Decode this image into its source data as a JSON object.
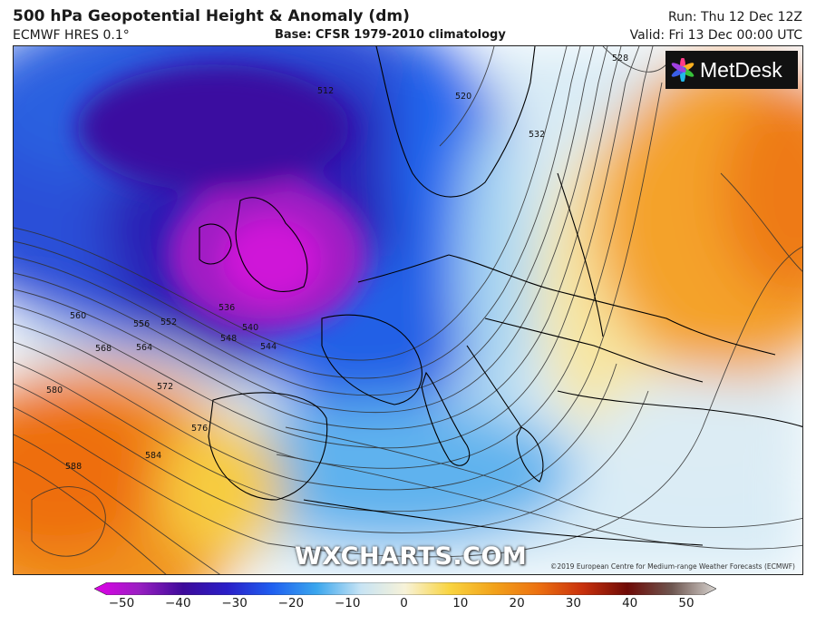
{
  "header": {
    "title": "500 hPa Geopotential Height & Anomaly (dm)",
    "model": "ECMWF HRES 0.1°",
    "base": "Base: CFSR 1979-2010 climatology",
    "run": "Run: Thu 12 Dec 12Z",
    "valid": "Valid: Fri 13 Dec 00:00 UTC"
  },
  "brand": {
    "logo_text": "MetDesk",
    "watermark": "WXCHARTS.COM",
    "copyright": "©2019 European Centre for Medium-range Weather Forecasts (ECMWF)"
  },
  "contour_labels": [
    "512",
    "520",
    "528",
    "532",
    "536",
    "540",
    "544",
    "548",
    "552",
    "556",
    "560",
    "564",
    "568",
    "572",
    "576",
    "580",
    "584",
    "588"
  ],
  "colorbar": {
    "ticks": [
      "−50",
      "−40",
      "−30",
      "−20",
      "−10",
      "0",
      "10",
      "20",
      "30",
      "40",
      "50"
    ],
    "colors": [
      "#e000e8",
      "#9a1fc2",
      "#3d0a9a",
      "#2a1fc8",
      "#1f5ff0",
      "#3aa6ee",
      "#c8e4f4",
      "#f7f2d8",
      "#f9d440",
      "#f2a21a",
      "#ec7010",
      "#c8300c",
      "#6e0a06",
      "#6e5650",
      "#d8d4d0"
    ]
  }
}
